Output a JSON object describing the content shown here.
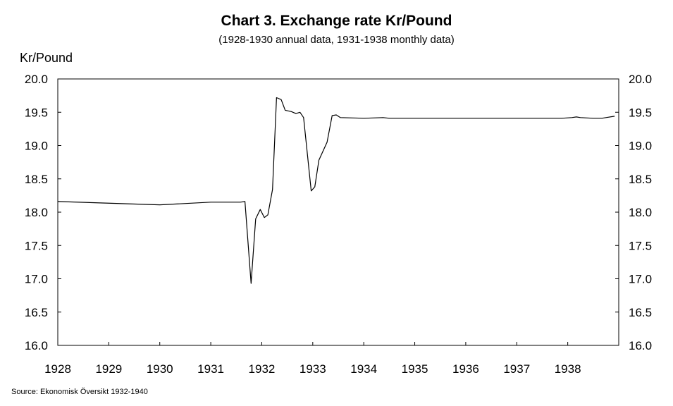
{
  "chart_data": {
    "type": "line",
    "title": "Chart 3. Exchange rate Kr/Pound",
    "subtitle": "(1928-1930 annual data, 1931-1938 monthly data)",
    "ylabel": "Kr/Pound",
    "xlabel": "",
    "source": "Source: Ekonomisk Översikt 1932-1940",
    "ylim": [
      16.0,
      20.0
    ],
    "xlim": [
      1928.0,
      1939.0
    ],
    "y_ticks": [
      "16.0",
      "16.5",
      "17.0",
      "17.5",
      "18.0",
      "18.5",
      "19.0",
      "19.5",
      "20.0"
    ],
    "x_ticks": [
      "1928",
      "1929",
      "1930",
      "1931",
      "1932",
      "1933",
      "1934",
      "1935",
      "1936",
      "1937",
      "1938"
    ],
    "grid": false,
    "series": [
      {
        "x": [
          1928.0,
          1930.0,
          1931.0,
          1931.58,
          1931.67,
          1931.79,
          1931.88,
          1931.97,
          1932.05,
          1932.12,
          1932.21,
          1932.29,
          1932.38,
          1932.46,
          1932.58,
          1932.67,
          1932.75,
          1932.82,
          1932.97,
          1933.04,
          1933.12,
          1933.28,
          1933.38,
          1933.46,
          1933.54,
          1934.0,
          1934.38,
          1934.5,
          1935.0,
          1936.0,
          1937.0,
          1937.88,
          1938.08,
          1938.17,
          1938.25,
          1938.5,
          1938.67,
          1938.75,
          1938.92
        ],
        "values": [
          18.16,
          18.11,
          18.15,
          18.15,
          18.16,
          16.93,
          17.9,
          18.04,
          17.92,
          17.96,
          18.34,
          19.72,
          19.69,
          19.53,
          19.51,
          19.48,
          19.5,
          19.42,
          18.32,
          18.38,
          18.78,
          19.05,
          19.45,
          19.46,
          19.42,
          19.41,
          19.42,
          19.41,
          19.41,
          19.41,
          19.41,
          19.41,
          19.42,
          19.43,
          19.42,
          19.41,
          19.41,
          19.42,
          19.44
        ]
      }
    ]
  }
}
